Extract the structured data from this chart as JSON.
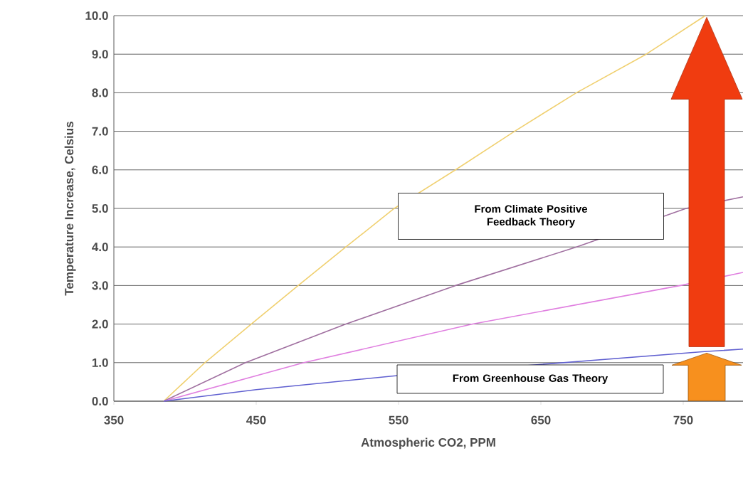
{
  "chart_data": {
    "type": "line",
    "xlabel": "Atmospheric CO2, PPM",
    "ylabel": "Temperature Increase, Celsius",
    "xlim": [
      350,
      792
    ],
    "ylim": [
      0,
      10
    ],
    "xticks": [
      350,
      450,
      550,
      650,
      750
    ],
    "yticks": [
      {
        "value": 0,
        "label": "0.0"
      },
      {
        "value": 1,
        "label": "1.0"
      },
      {
        "value": 2,
        "label": "2.0"
      },
      {
        "value": 3,
        "label": "3.0"
      },
      {
        "value": 4,
        "label": "4.0"
      },
      {
        "value": 5,
        "label": "5.0"
      },
      {
        "value": 6,
        "label": "6.0"
      },
      {
        "value": 7,
        "label": "7.0"
      },
      {
        "value": 8,
        "label": "8.0"
      },
      {
        "value": 9,
        "label": "9.0"
      },
      {
        "value": 10,
        "label": "10.0"
      }
    ],
    "grid": "y",
    "marker": "none",
    "line_style": "solid",
    "series": [
      {
        "color": "#f0d070",
        "x": [
          385,
          414,
          446.5,
          479.5,
          513,
          547,
          590,
          631.5,
          675,
          724,
          765.5
        ],
        "values": [
          0,
          1,
          2,
          3,
          4,
          5,
          6,
          7,
          8,
          9,
          10
        ]
      },
      {
        "color": "#a070a0",
        "x": [
          385,
          442.5,
          513,
          590,
          675,
          752,
          792
        ],
        "values": [
          0,
          1,
          2,
          3,
          4,
          5,
          5.3
        ]
      },
      {
        "color": "#e080e0",
        "x": [
          385,
          483.5,
          602,
          748,
          792
        ],
        "values": [
          0,
          1,
          2,
          3,
          3.34
        ]
      },
      {
        "color": "#6060d0",
        "x": [
          385,
          450,
          548,
          766.5,
          792
        ],
        "values": [
          0,
          0.3,
          0.66,
          1.29,
          1.35
        ]
      }
    ],
    "annotations": [
      "From Climate Positive Feedback Theory",
      "From Greenhouse Gas Theory"
    ]
  }
}
